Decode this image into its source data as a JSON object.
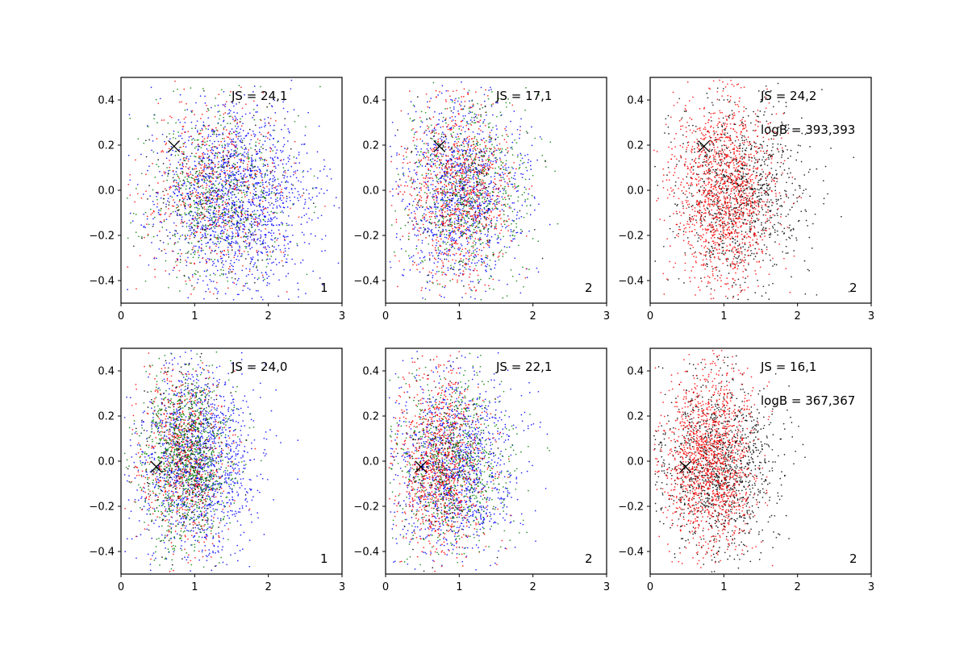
{
  "figure": {
    "colors": {
      "background": "#ffffff",
      "axes": "#000000",
      "marker": "#000000"
    }
  },
  "chart_data": [
    {
      "type": "scatter",
      "panel": "row1-col1",
      "xlim": [
        0,
        3
      ],
      "ylim": [
        -0.5,
        0.5
      ],
      "xticks": [
        0,
        1,
        2,
        3
      ],
      "yticks": [
        -0.4,
        -0.2,
        0.0,
        0.2,
        0.4
      ],
      "xtick_labels": [
        "0",
        "1",
        "2",
        "3"
      ],
      "ytick_labels": [
        "−0.4",
        "−0.2",
        "0.0",
        "0.2",
        "0.4"
      ],
      "series": [
        {
          "name": "blue",
          "color": "#0000ff",
          "center": [
            1.55,
            -0.03
          ],
          "spread": [
            0.55,
            0.2
          ],
          "count": 1600
        },
        {
          "name": "red",
          "color": "#ff0000",
          "center": [
            1.3,
            0.0
          ],
          "spread": [
            0.45,
            0.2
          ],
          "count": 550
        },
        {
          "name": "green",
          "color": "#008000",
          "center": [
            1.3,
            -0.02
          ],
          "spread": [
            0.45,
            0.2
          ],
          "count": 550
        },
        {
          "name": "black",
          "color": "#000000",
          "center": [
            1.3,
            -0.02
          ],
          "spread": [
            0.45,
            0.2
          ],
          "count": 200
        }
      ],
      "marker": {
        "x": 0.72,
        "y": 0.195,
        "symbol": "x"
      },
      "annotations": {
        "js": "JS = 24,1",
        "logb": "",
        "corner": "1"
      }
    },
    {
      "type": "scatter",
      "panel": "row1-col2",
      "xlim": [
        0,
        3
      ],
      "ylim": [
        -0.5,
        0.5
      ],
      "xticks": [
        0,
        1,
        2,
        3
      ],
      "yticks": [
        -0.4,
        -0.2,
        0.0,
        0.2,
        0.4
      ],
      "xtick_labels": [
        "0",
        "1",
        "2",
        "3"
      ],
      "ytick_labels": [
        "−0.4",
        "−0.2",
        "0.0",
        "0.2",
        "0.4"
      ],
      "series": [
        {
          "name": "blue",
          "color": "#0000ff",
          "center": [
            1.05,
            -0.01
          ],
          "spread": [
            0.4,
            0.2
          ],
          "count": 1100
        },
        {
          "name": "red",
          "color": "#ff0000",
          "center": [
            1.0,
            0.0
          ],
          "spread": [
            0.35,
            0.2
          ],
          "count": 900
        },
        {
          "name": "green",
          "color": "#008000",
          "center": [
            1.15,
            -0.01
          ],
          "spread": [
            0.45,
            0.2
          ],
          "count": 600
        },
        {
          "name": "black",
          "color": "#000000",
          "center": [
            1.0,
            0.0
          ],
          "spread": [
            0.35,
            0.2
          ],
          "count": 150
        }
      ],
      "marker": {
        "x": 0.73,
        "y": 0.195,
        "symbol": "x"
      },
      "annotations": {
        "js": "JS = 17,1",
        "logb": "",
        "corner": "2"
      }
    },
    {
      "type": "scatter",
      "panel": "row1-col3",
      "xlim": [
        0,
        3
      ],
      "ylim": [
        -0.5,
        0.5
      ],
      "xticks": [
        0,
        1,
        2,
        3
      ],
      "yticks": [
        -0.4,
        -0.2,
        0.0,
        0.2,
        0.4
      ],
      "xtick_labels": [
        "0",
        "1",
        "2",
        "3"
      ],
      "ytick_labels": [
        "−0.4",
        "−0.2",
        "0.0",
        "0.2",
        "0.4"
      ],
      "series": [
        {
          "name": "black",
          "color": "#000000",
          "center": [
            1.25,
            -0.02
          ],
          "spread": [
            0.45,
            0.2
          ],
          "count": 1000
        },
        {
          "name": "red",
          "color": "#ff0000",
          "center": [
            1.0,
            0.0
          ],
          "spread": [
            0.35,
            0.2
          ],
          "count": 1400
        }
      ],
      "marker": {
        "x": 0.73,
        "y": 0.195,
        "symbol": "x"
      },
      "annotations": {
        "js": "JS = 24,2",
        "logb": "logB = 393,393",
        "corner": "2"
      }
    },
    {
      "type": "scatter",
      "panel": "row2-col1",
      "xlim": [
        0,
        3
      ],
      "ylim": [
        -0.5,
        0.5
      ],
      "xticks": [
        0,
        1,
        2,
        3
      ],
      "yticks": [
        -0.4,
        -0.2,
        0.0,
        0.2,
        0.4
      ],
      "xtick_labels": [
        "0",
        "1",
        "2",
        "3"
      ],
      "ytick_labels": [
        "−0.4",
        "−0.2",
        "0.0",
        "0.2",
        "0.4"
      ],
      "series": [
        {
          "name": "blue",
          "color": "#0000ff",
          "center": [
            1.05,
            0.0
          ],
          "spread": [
            0.4,
            0.2
          ],
          "count": 1400
        },
        {
          "name": "red",
          "color": "#ff0000",
          "center": [
            0.85,
            0.02
          ],
          "spread": [
            0.3,
            0.2
          ],
          "count": 700
        },
        {
          "name": "green",
          "color": "#008000",
          "center": [
            0.9,
            0.02
          ],
          "spread": [
            0.3,
            0.2
          ],
          "count": 1000
        },
        {
          "name": "black",
          "color": "#000000",
          "center": [
            0.85,
            0.0
          ],
          "spread": [
            0.3,
            0.2
          ],
          "count": 200
        }
      ],
      "marker": {
        "x": 0.48,
        "y": -0.025,
        "symbol": "x"
      },
      "annotations": {
        "js": "JS = 24,0",
        "logb": "",
        "corner": "1"
      }
    },
    {
      "type": "scatter",
      "panel": "row2-col2",
      "xlim": [
        0,
        3
      ],
      "ylim": [
        -0.5,
        0.5
      ],
      "xticks": [
        0,
        1,
        2,
        3
      ],
      "yticks": [
        -0.4,
        -0.2,
        0.0,
        0.2,
        0.4
      ],
      "xtick_labels": [
        "0",
        "1",
        "2",
        "3"
      ],
      "ytick_labels": [
        "−0.4",
        "−0.2",
        "0.0",
        "0.2",
        "0.4"
      ],
      "series": [
        {
          "name": "blue",
          "color": "#0000ff",
          "center": [
            0.95,
            -0.01
          ],
          "spread": [
            0.4,
            0.2
          ],
          "count": 1200
        },
        {
          "name": "red",
          "color": "#ff0000",
          "center": [
            0.75,
            0.0
          ],
          "spread": [
            0.3,
            0.2
          ],
          "count": 1000
        },
        {
          "name": "green",
          "color": "#008000",
          "center": [
            0.95,
            0.0
          ],
          "spread": [
            0.4,
            0.2
          ],
          "count": 700
        },
        {
          "name": "black",
          "color": "#000000",
          "center": [
            0.8,
            0.0
          ],
          "spread": [
            0.3,
            0.2
          ],
          "count": 150
        }
      ],
      "marker": {
        "x": 0.48,
        "y": -0.025,
        "symbol": "x"
      },
      "annotations": {
        "js": "JS = 22,1",
        "logb": "",
        "corner": "2"
      }
    },
    {
      "type": "scatter",
      "panel": "row2-col3",
      "xlim": [
        0,
        3
      ],
      "ylim": [
        -0.5,
        0.5
      ],
      "xticks": [
        0,
        1,
        2,
        3
      ],
      "yticks": [
        -0.4,
        -0.2,
        0.0,
        0.2,
        0.4
      ],
      "xtick_labels": [
        "0",
        "1",
        "2",
        "3"
      ],
      "ytick_labels": [
        "−0.4",
        "−0.2",
        "0.0",
        "0.2",
        "0.4"
      ],
      "series": [
        {
          "name": "black",
          "color": "#000000",
          "center": [
            0.95,
            -0.02
          ],
          "spread": [
            0.4,
            0.2
          ],
          "count": 1200
        },
        {
          "name": "red",
          "color": "#ff0000",
          "center": [
            0.8,
            0.0
          ],
          "spread": [
            0.3,
            0.2
          ],
          "count": 1400
        }
      ],
      "marker": {
        "x": 0.48,
        "y": -0.025,
        "symbol": "x"
      },
      "annotations": {
        "js": "JS = 16,1",
        "logb": "logB = 367,367",
        "corner": "2"
      }
    }
  ]
}
